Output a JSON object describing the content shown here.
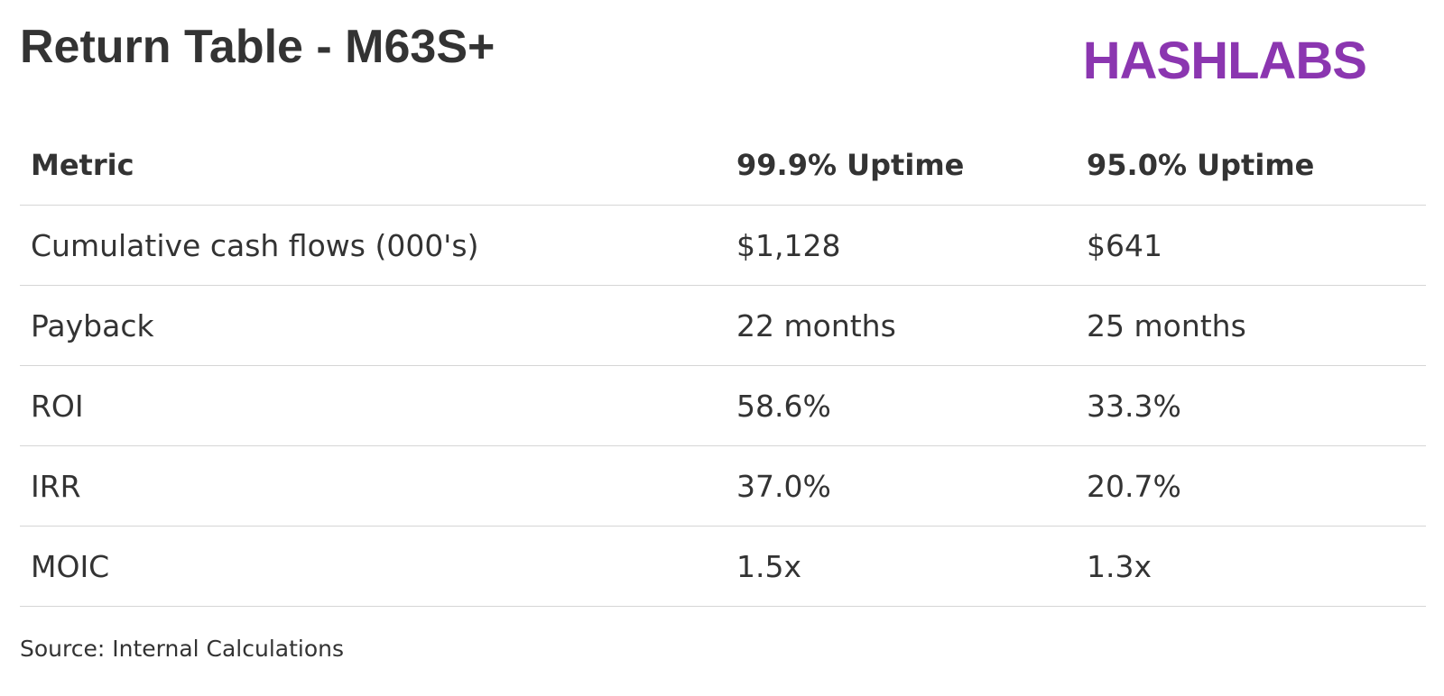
{
  "header": {
    "title": "Return Table - M63S+",
    "logo": "HASHLABS"
  },
  "table": {
    "columns": [
      "Metric",
      "99.9% Uptime",
      "95.0% Uptime"
    ],
    "rows": [
      [
        "Cumulative cash flows (000's)",
        "$1,128",
        "$641"
      ],
      [
        "Payback",
        "22 months",
        "25 months"
      ],
      [
        "ROI",
        "58.6%",
        "33.3%"
      ],
      [
        "IRR",
        "37.0%",
        "20.7%"
      ],
      [
        "MOIC",
        "1.5x",
        "1.3x"
      ]
    ]
  },
  "footer": {
    "source": "Source: Internal Calculations"
  }
}
